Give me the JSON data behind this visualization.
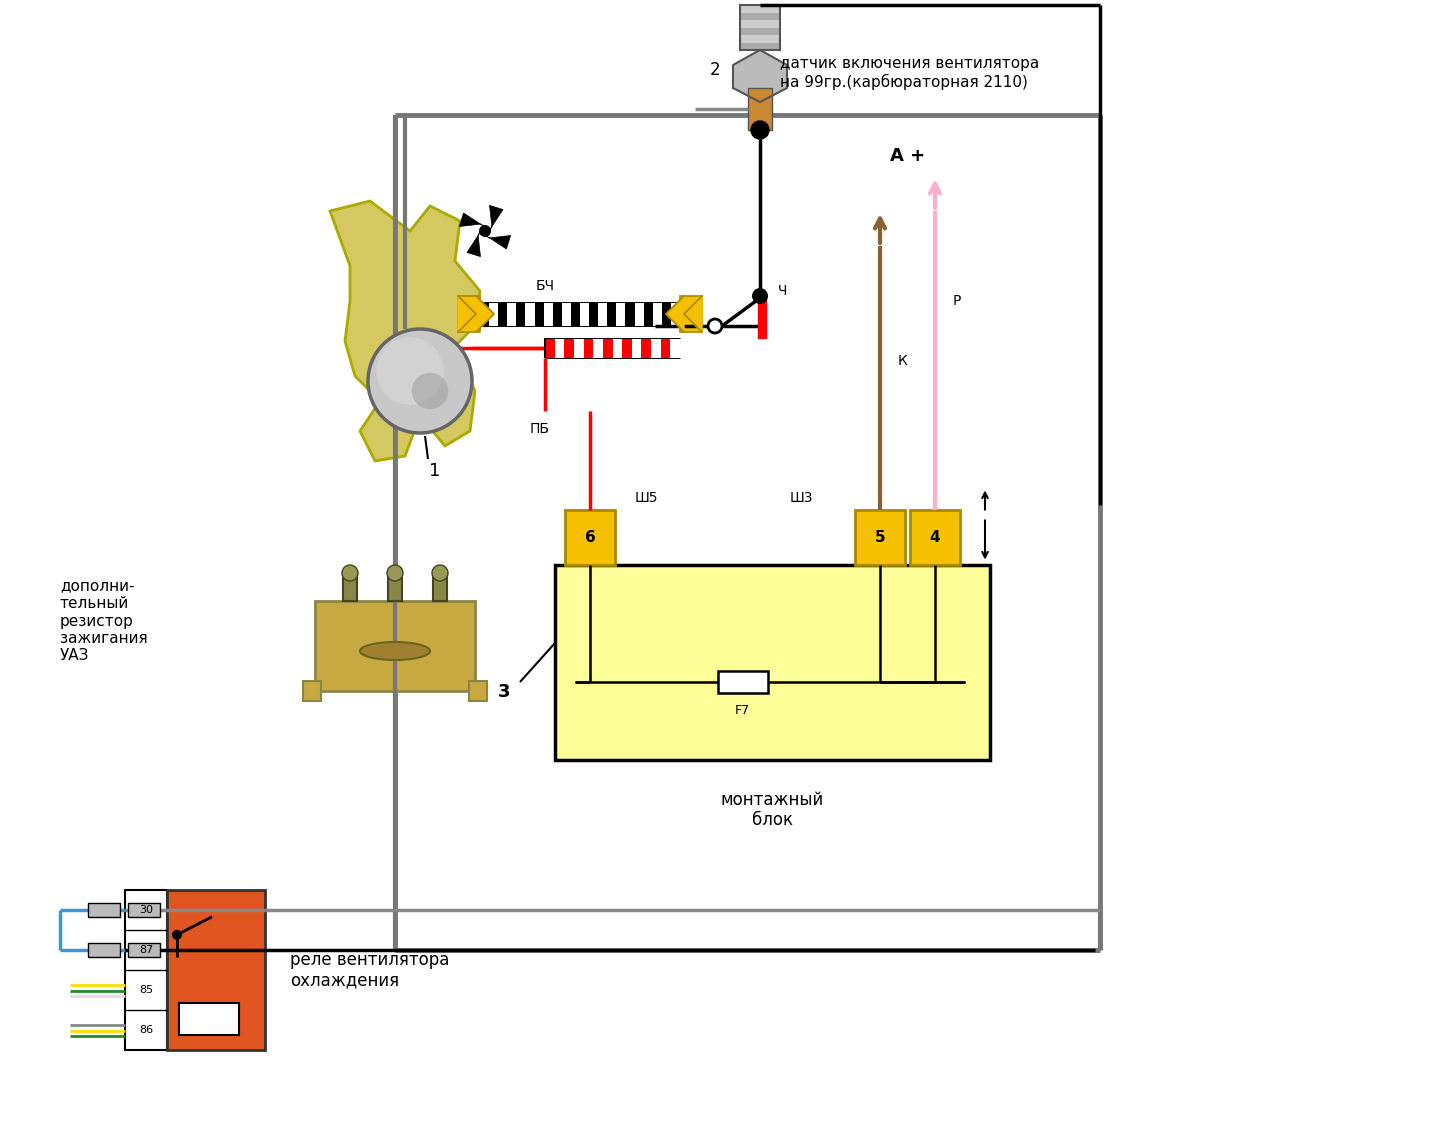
{
  "bg_color": "#ffffff",
  "label_sensor": "датчик включения вентилятора\nна 99гр.(карбюраторная 2110)",
  "label_resistor": "дополни-\nтельный\nрезистор\nзажигания\nУАЗ",
  "label_relay": "реле вентилятора\nохлаждения",
  "label_block": "монтажный\nблок",
  "label_bch": "БЧ",
  "label_pb": "ПБ",
  "label_ch": "Ч",
  "label_sh5": "Ш5",
  "label_sh3": "Ш3",
  "label_f7": "F7",
  "label_a_plus": "А +",
  "label_p": "Р",
  "label_k": "К",
  "label_1": "1",
  "label_2": "2",
  "label_3": "3",
  "yellow": "#F5C000",
  "red": "#FF0000",
  "black": "#000000",
  "gray_wire": "#888888",
  "light_yellow_block": "#FFFF99",
  "orange_relay": "#E05520",
  "blue_wire": "#3399DD",
  "pink_wire": "#FFB0C8",
  "brown_wire": "#8B6030",
  "fan_blade_color": "#D4C860",
  "fan_blade_edge": "#AAAA00",
  "sensor_nut": "#AAAAAA",
  "sensor_shaft": "#CC9944",
  "motor_body": "#A0A0A0"
}
